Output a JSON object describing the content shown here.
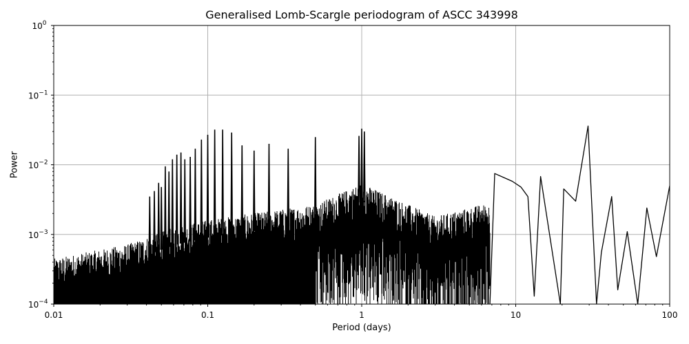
{
  "chart_data": {
    "type": "line",
    "title": "Generalised Lomb-Scargle periodogram of ASCC 343998",
    "xlabel": "Period (days)",
    "ylabel": "Power",
    "xscale": "log",
    "yscale": "log",
    "xlim": [
      0.01,
      100
    ],
    "ylim": [
      0.0001,
      1
    ],
    "grid": true,
    "legend": null,
    "x_ticks": [
      {
        "value": 0.01,
        "label": "0.01"
      },
      {
        "value": 0.1,
        "label": "0.1"
      },
      {
        "value": 1,
        "label": "1"
      },
      {
        "value": 10,
        "label": "10"
      },
      {
        "value": 100,
        "label": "100"
      }
    ],
    "y_ticks": [
      {
        "value": 0.0001,
        "base": "10",
        "exp": "−4"
      },
      {
        "value": 0.001,
        "base": "10",
        "exp": "−3"
      },
      {
        "value": 0.01,
        "base": "10",
        "exp": "−2"
      },
      {
        "value": 0.1,
        "base": "10",
        "exp": "−1"
      },
      {
        "value": 1,
        "base": "10",
        "exp": "0"
      }
    ],
    "line_color": "#000000",
    "grid_color": "#b0b0b0",
    "alias_peaks": [
      {
        "period": 0.042,
        "power": 0.0035
      },
      {
        "period": 0.045,
        "power": 0.0042
      },
      {
        "period": 0.048,
        "power": 0.0055
      },
      {
        "period": 0.05,
        "power": 0.0048
      },
      {
        "period": 0.053,
        "power": 0.0095
      },
      {
        "period": 0.056,
        "power": 0.008
      },
      {
        "period": 0.059,
        "power": 0.012
      },
      {
        "period": 0.063,
        "power": 0.014
      },
      {
        "period": 0.067,
        "power": 0.015
      },
      {
        "period": 0.071,
        "power": 0.012
      },
      {
        "period": 0.077,
        "power": 0.013
      },
      {
        "period": 0.083,
        "power": 0.017
      },
      {
        "period": 0.091,
        "power": 0.023
      },
      {
        "period": 0.1,
        "power": 0.027
      },
      {
        "period": 0.111,
        "power": 0.032
      },
      {
        "period": 0.125,
        "power": 0.032
      },
      {
        "period": 0.143,
        "power": 0.029
      },
      {
        "period": 0.167,
        "power": 0.019
      },
      {
        "period": 0.2,
        "power": 0.016
      },
      {
        "period": 0.25,
        "power": 0.02
      },
      {
        "period": 0.333,
        "power": 0.017
      },
      {
        "period": 0.5,
        "power": 0.025
      },
      {
        "period": 0.96,
        "power": 0.026
      },
      {
        "period": 1.0,
        "power": 0.033
      },
      {
        "period": 1.04,
        "power": 0.03
      }
    ],
    "long_period_features": [
      {
        "period": 7.3,
        "power": 0.0075
      },
      {
        "period": 9.5,
        "power": 0.0058
      },
      {
        "period": 10.8,
        "power": 0.0048
      },
      {
        "period": 12.0,
        "power": 0.0035
      },
      {
        "period": 14.5,
        "power": 0.0068
      },
      {
        "period": 20.5,
        "power": 0.0045
      },
      {
        "period": 24.5,
        "power": 0.003
      },
      {
        "period": 29.5,
        "power": 0.036
      },
      {
        "period": 36.0,
        "power": 0.00055
      },
      {
        "period": 42.0,
        "power": 0.0035
      },
      {
        "period": 53.0,
        "power": 0.0011
      },
      {
        "period": 71.0,
        "power": 0.0024
      },
      {
        "period": 100.0,
        "power": 0.005
      }
    ],
    "long_period_minima": [
      {
        "period": 13.2,
        "power": 0.00013
      },
      {
        "period": 19.5,
        "power": 0.0001
      },
      {
        "period": 33.5,
        "power": 0.0001
      },
      {
        "period": 46.0,
        "power": 0.00016
      },
      {
        "period": 62.0,
        "power": 0.0001
      },
      {
        "period": 82.0,
        "power": 0.00048
      }
    ],
    "noise_floor": [
      {
        "period": 0.01,
        "power": 0.00025
      },
      {
        "period": 0.03,
        "power": 0.0004
      },
      {
        "period": 0.06,
        "power": 0.0007
      },
      {
        "period": 0.1,
        "power": 0.0009
      },
      {
        "period": 0.5,
        "power": 0.0015
      },
      {
        "period": 1.0,
        "power": 0.003
      },
      {
        "period": 3.0,
        "power": 0.001
      },
      {
        "period": 6.0,
        "power": 0.0015
      }
    ]
  }
}
